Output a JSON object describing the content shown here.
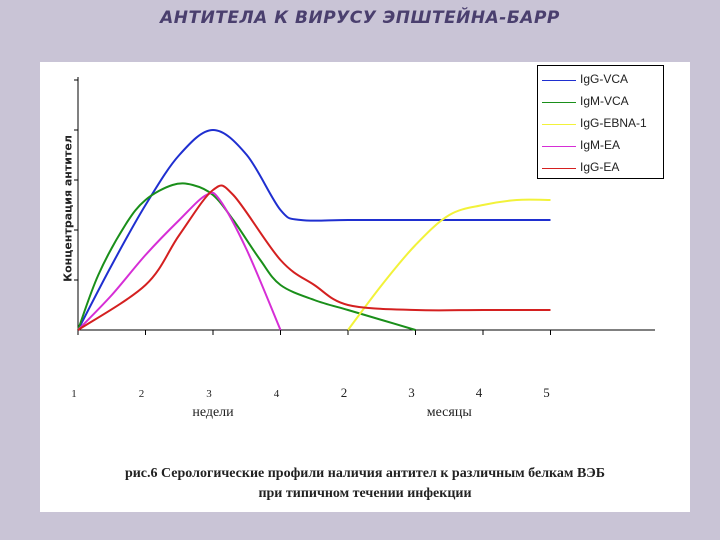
{
  "title": "АНТИТЕЛА К ВИРУСУ ЭПШТЕЙНА-БАРР",
  "caption": {
    "line1": "рис.6   Серологические профили наличия антител к различным белкам ВЭБ",
    "line2": "при типичном течении инфекции"
  },
  "chart_data": {
    "type": "line",
    "ylabel": "Концентрация антител",
    "ylim": [
      0,
      5
    ],
    "grid": false,
    "legend_position": "top-right",
    "x_ticks": [
      {
        "pos": 0,
        "label": "1",
        "unit": "weeks"
      },
      {
        "pos": 1,
        "label": "2",
        "unit": "weeks"
      },
      {
        "pos": 2,
        "label": "3",
        "unit": "weeks"
      },
      {
        "pos": 3,
        "label": "4",
        "unit": "weeks"
      },
      {
        "pos": 4,
        "label": "2",
        "unit": "months"
      },
      {
        "pos": 5,
        "label": "3",
        "unit": "months"
      },
      {
        "pos": 6,
        "label": "4",
        "unit": "months"
      },
      {
        "pos": 7,
        "label": "5",
        "unit": "months"
      }
    ],
    "x_groups": [
      {
        "label": "недели",
        "center": 2
      },
      {
        "label": "месяцы",
        "center": 5.5
      }
    ],
    "xlim": [
      0,
      8
    ],
    "series": [
      {
        "name": "IgG-VCA",
        "color": "#1f2fd0",
        "x": [
          0,
          0.5,
          1,
          1.5,
          2,
          2.5,
          3,
          3.3,
          4,
          5,
          6,
          7
        ],
        "y": [
          0,
          1.3,
          2.5,
          3.5,
          4.0,
          3.5,
          2.4,
          2.2,
          2.2,
          2.2,
          2.2,
          2.2
        ]
      },
      {
        "name": "IgM-VCA",
        "color": "#1a8f1a",
        "x": [
          0,
          0.3,
          0.7,
          1,
          1.4,
          1.7,
          2,
          2.3,
          2.7,
          3,
          3.5,
          4,
          4.5,
          5
        ],
        "y": [
          0,
          1.1,
          2.1,
          2.6,
          2.9,
          2.9,
          2.7,
          2.2,
          1.4,
          0.9,
          0.6,
          0.4,
          0.2,
          0
        ]
      },
      {
        "name": "IgG-EBNA-1",
        "color": "#f2f23a",
        "x": [
          4,
          4.5,
          5,
          5.5,
          6,
          6.5,
          7
        ],
        "y": [
          0,
          0.9,
          1.7,
          2.3,
          2.5,
          2.6,
          2.6
        ]
      },
      {
        "name": "IgM-EA",
        "color": "#d62ed6",
        "x": [
          0,
          0.5,
          1,
          1.5,
          1.9,
          2.1,
          2.5,
          3
        ],
        "y": [
          0,
          0.7,
          1.5,
          2.2,
          2.7,
          2.6,
          1.6,
          0
        ]
      },
      {
        "name": "IgG-EA",
        "color": "#d42020",
        "x": [
          0,
          1,
          1.5,
          2,
          2.3,
          3,
          3.5,
          4,
          5,
          6,
          7
        ],
        "y": [
          0,
          0.9,
          1.9,
          2.8,
          2.7,
          1.4,
          0.9,
          0.5,
          0.4,
          0.4,
          0.4
        ]
      }
    ]
  }
}
